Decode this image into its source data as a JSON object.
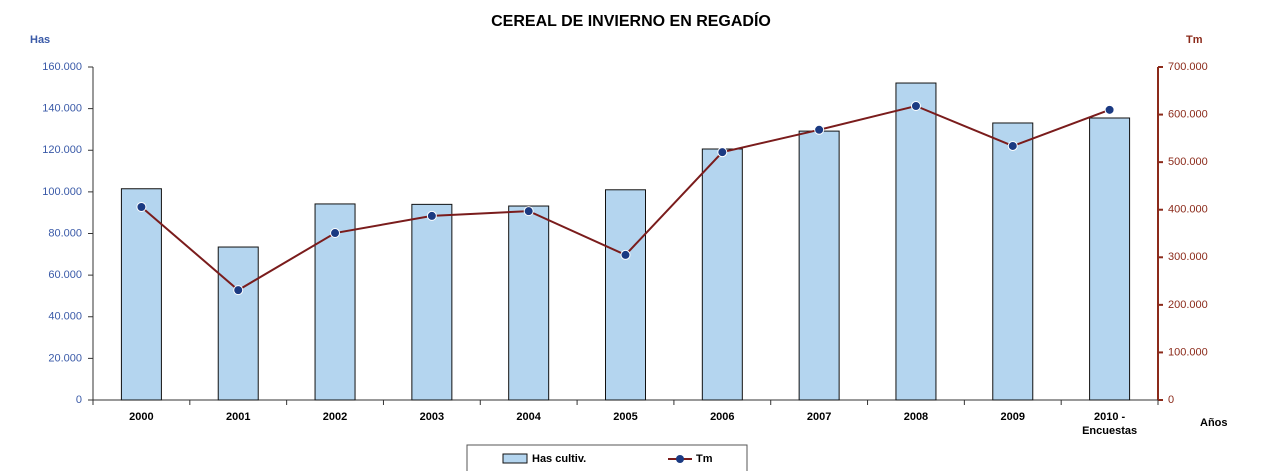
{
  "chart_data": {
    "type": "bar_line",
    "title": "CEREAL DE INVIERNO EN REGADÍO",
    "y_label": "Has",
    "y2_label": "Tm",
    "x_label": "Años",
    "categories": [
      "2000",
      "2001",
      "2002",
      "2003",
      "2004",
      "2005",
      "2006",
      "2007",
      "2008",
      "2009",
      "2010 - Encuestas"
    ],
    "series": [
      {
        "name": "Has cultiv.",
        "type": "bar",
        "color": "#b4d5ef",
        "values": [
          101500,
          73500,
          94200,
          94000,
          93200,
          101000,
          120600,
          129200,
          152300,
          133100,
          135500
        ]
      },
      {
        "name": "Tm",
        "type": "line",
        "axis": "y2",
        "color": "#7a1c1c",
        "marker_color": "#1b3a82",
        "values": [
          405700,
          231000,
          351000,
          387000,
          397000,
          305000,
          521000,
          568000,
          618000,
          534000,
          610000
        ]
      }
    ],
    "ylim": [
      0,
      160000
    ],
    "yticks": [
      0,
      {
        "value": 20000,
        "label": "20.000"
      },
      {
        "value": 40000,
        "label": "40.000"
      },
      {
        "value": 60000,
        "label": "60.000"
      },
      {
        "value": 80000,
        "label": "80.000"
      },
      {
        "value": 100000,
        "label": "100.000"
      },
      {
        "value": 120000,
        "label": "120.000"
      },
      {
        "value": 140000,
        "label": "140.000"
      },
      {
        "value": 160000,
        "label": "160.000"
      }
    ],
    "y2lim": [
      0,
      700000
    ],
    "y2ticks": [
      0,
      {
        "value": 100000,
        "label": "100.000"
      },
      {
        "value": 200000,
        "label": "200.000"
      },
      {
        "value": 300000,
        "label": "300.000"
      },
      {
        "value": 400000,
        "label": "400.000"
      },
      {
        "value": 500000,
        "label": "500.000"
      },
      {
        "value": 600000,
        "label": "600.000"
      },
      {
        "value": 700000,
        "label": "700.000"
      }
    ],
    "legend": "bottom"
  }
}
